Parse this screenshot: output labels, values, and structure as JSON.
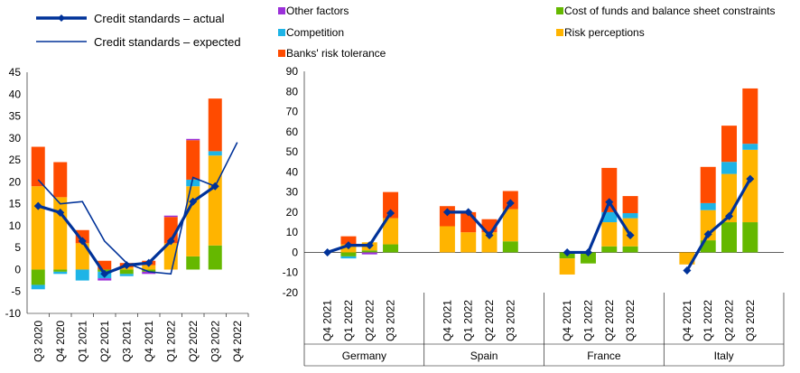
{
  "legend": {
    "actual": "Credit standards – actual",
    "expected": "Credit standards – expected",
    "other": "Other factors",
    "competition": "Competition",
    "tolerance": "Banks' risk tolerance",
    "cost": "Cost of funds and balance sheet constraints",
    "risk": "Risk perceptions"
  },
  "colors": {
    "other": "#9b30d9",
    "competition": "#1eb4e6",
    "tolerance": "#ff4b00",
    "cost": "#65b800",
    "risk": "#ffb400",
    "actual": "#003299",
    "expected": "#003299"
  },
  "chart_data": [
    {
      "type": "bar",
      "stacked": true,
      "ylim": [
        -10,
        45
      ],
      "yticks": [
        -10,
        -5,
        0,
        5,
        10,
        15,
        20,
        25,
        30,
        35,
        40,
        45
      ],
      "categories": [
        "Q3 2020",
        "Q4 2020",
        "Q1 2021",
        "Q2 2021",
        "Q3 2021",
        "Q4 2021",
        "Q1 2022",
        "Q2 2022",
        "Q3 2022",
        "Q4 2022"
      ],
      "series": [
        {
          "name": "Cost of funds and balance sheet constraints",
          "key": "cost",
          "values": [
            -3.5,
            -0.5,
            0,
            -0.5,
            -1,
            -0.5,
            0,
            3,
            5.5,
            null
          ]
        },
        {
          "name": "Risk perceptions",
          "key": "risk",
          "values": [
            19,
            16.5,
            6,
            0,
            0.5,
            1,
            6,
            16,
            20.5,
            null
          ]
        },
        {
          "name": "Competition",
          "key": "competition",
          "values": [
            -1,
            -0.5,
            -2.5,
            -1.5,
            -0.5,
            0,
            0,
            1.5,
            1,
            null
          ]
        },
        {
          "name": "Banks' risk tolerance",
          "key": "tolerance",
          "values": [
            9,
            8,
            3,
            2,
            1,
            1,
            6,
            9,
            12,
            null
          ]
        },
        {
          "name": "Other factors",
          "key": "other",
          "values": [
            0,
            0,
            0,
            -0.5,
            0,
            -0.5,
            0.3,
            0.3,
            0,
            null
          ]
        }
      ],
      "lines": [
        {
          "name": "Credit standards – actual",
          "key": "actual",
          "values": [
            14.5,
            13,
            6.5,
            -1,
            1,
            1.5,
            6.5,
            15.5,
            19,
            null
          ]
        },
        {
          "name": "Credit standards – expected",
          "key": "expected",
          "values": [
            20.5,
            15,
            15.5,
            6.5,
            1.5,
            -0.5,
            -1,
            21,
            19,
            29
          ]
        }
      ]
    },
    {
      "type": "bar",
      "stacked": true,
      "ylim": [
        -20,
        90
      ],
      "yticks": [
        -20,
        -10,
        0,
        10,
        20,
        30,
        40,
        50,
        60,
        70,
        80,
        90
      ],
      "groups": [
        "Germany",
        "Spain",
        "France",
        "Italy"
      ],
      "categories": [
        "Q4 2021",
        "Q1 2022",
        "Q2 2022",
        "Q3 2022"
      ],
      "data": [
        {
          "cost": [
            0,
            -2,
            1,
            4
          ],
          "risk": [
            0,
            4,
            4,
            13
          ],
          "competition": [
            0,
            -1,
            0,
            0
          ],
          "tolerance": [
            0,
            4,
            0,
            13
          ],
          "other": [
            0,
            0,
            -1,
            0
          ],
          "actual": [
            0,
            3.5,
            3.5,
            19.5
          ]
        },
        {
          "cost": [
            0,
            0,
            0,
            5.5
          ],
          "risk": [
            13,
            10,
            10,
            16
          ],
          "competition": [
            0,
            0,
            0,
            0
          ],
          "tolerance": [
            10,
            10,
            6.5,
            9
          ],
          "other": [
            0,
            0,
            0,
            0
          ],
          "actual": [
            20,
            20,
            8.5,
            24.5
          ]
        },
        {
          "cost": [
            -3,
            -5.5,
            3,
            3
          ],
          "risk": [
            -8,
            0,
            12,
            14
          ],
          "competition": [
            0,
            0,
            5,
            2.5
          ],
          "tolerance": [
            0,
            0,
            22,
            8.5
          ],
          "other": [
            0,
            0,
            0,
            0
          ],
          "actual": [
            0,
            0,
            25,
            8.5
          ]
        },
        {
          "cost": [
            0,
            6,
            15,
            15
          ],
          "risk": [
            -6,
            15,
            24,
            36
          ],
          "competition": [
            0,
            3.5,
            6,
            3
          ],
          "tolerance": [
            0,
            18,
            18,
            27.5
          ],
          "other": [
            0,
            0,
            0,
            0
          ],
          "actual": [
            -9,
            9,
            18,
            36.5
          ]
        }
      ]
    }
  ]
}
